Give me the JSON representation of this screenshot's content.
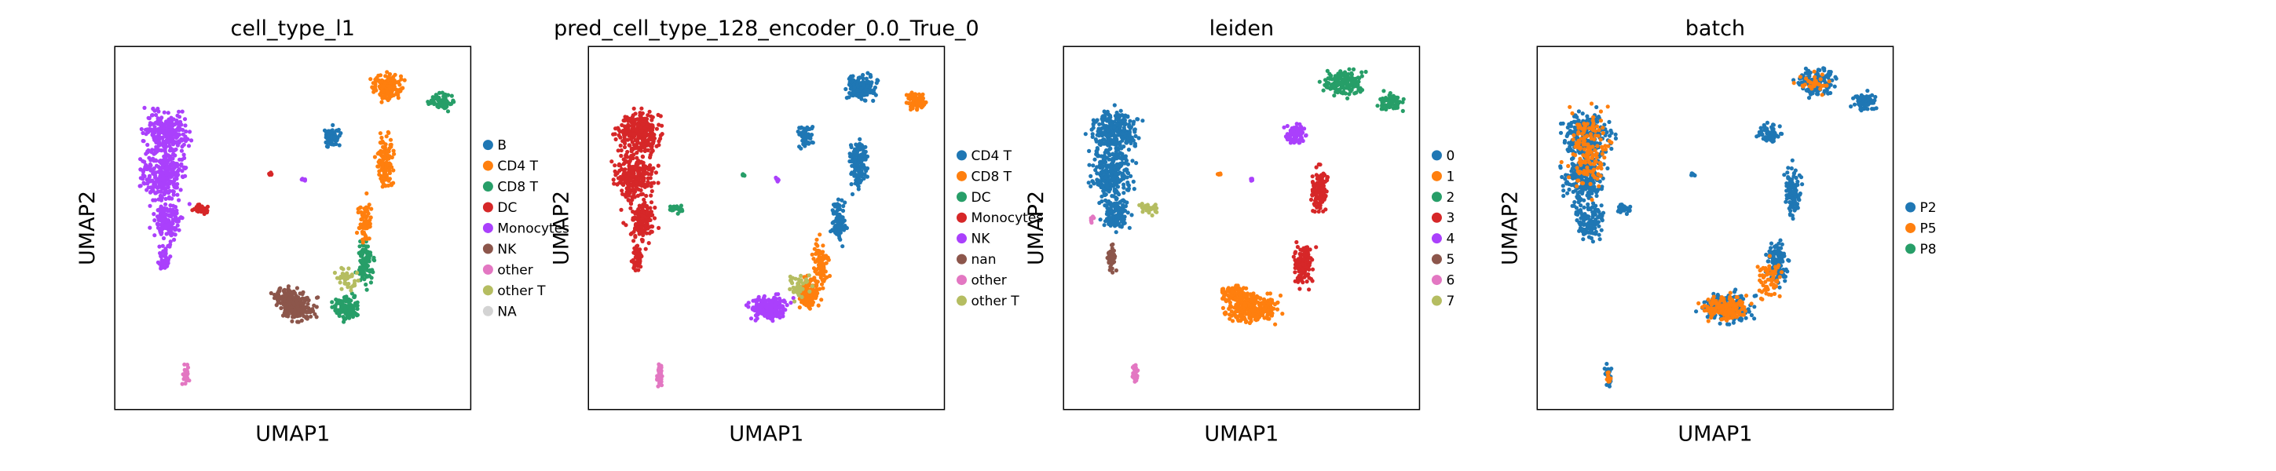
{
  "figure": {
    "background": "#ffffff"
  },
  "chart_data": [
    {
      "type": "scatter",
      "title": "cell_type_l1",
      "xlabel": "UMAP1",
      "ylabel": "UMAP2",
      "grid": false,
      "ticks": false,
      "legend_placement": "right",
      "legend": [
        {
          "label": "B",
          "color": "#1f77b4"
        },
        {
          "label": "CD4 T",
          "color": "#ff7f0e"
        },
        {
          "label": "CD8 T",
          "color": "#279e68"
        },
        {
          "label": "DC",
          "color": "#d62728"
        },
        {
          "label": "Monocytes",
          "color": "#aa40fc"
        },
        {
          "label": "NK",
          "color": "#8c564b"
        },
        {
          "label": "other",
          "color": "#e377c2"
        },
        {
          "label": "other T",
          "color": "#b5bd61"
        },
        {
          "label": "NA",
          "color": "#d3d3d3"
        }
      ]
    },
    {
      "type": "scatter",
      "title": "pred_cell_type_128_encoder_0.0_True_0",
      "xlabel": "UMAP1",
      "ylabel": "UMAP2",
      "grid": false,
      "ticks": false,
      "legend_placement": "right",
      "legend": [
        {
          "label": "CD4 T",
          "color": "#1f77b4"
        },
        {
          "label": "CD8 T",
          "color": "#ff7f0e"
        },
        {
          "label": "DC",
          "color": "#279e68"
        },
        {
          "label": "Monocytes",
          "color": "#d62728"
        },
        {
          "label": "NK",
          "color": "#aa40fc"
        },
        {
          "label": "nan",
          "color": "#8c564b"
        },
        {
          "label": "other",
          "color": "#e377c2"
        },
        {
          "label": "other T",
          "color": "#b5bd61"
        }
      ]
    },
    {
      "type": "scatter",
      "title": "leiden",
      "xlabel": "UMAP1",
      "ylabel": "UMAP2",
      "grid": false,
      "ticks": false,
      "legend_placement": "right",
      "legend": [
        {
          "label": "0",
          "color": "#1f77b4"
        },
        {
          "label": "1",
          "color": "#ff7f0e"
        },
        {
          "label": "2",
          "color": "#279e68"
        },
        {
          "label": "3",
          "color": "#d62728"
        },
        {
          "label": "4",
          "color": "#aa40fc"
        },
        {
          "label": "5",
          "color": "#8c564b"
        },
        {
          "label": "6",
          "color": "#e377c2"
        },
        {
          "label": "7",
          "color": "#b5bd61"
        }
      ]
    },
    {
      "type": "scatter",
      "title": "batch",
      "xlabel": "UMAP1",
      "ylabel": "UMAP2",
      "grid": false,
      "ticks": false,
      "legend_placement": "right",
      "legend": [
        {
          "label": "P2",
          "color": "#1f77b4"
        },
        {
          "label": "P5",
          "color": "#ff7f0e"
        },
        {
          "label": "P8",
          "color": "#279e68"
        }
      ]
    }
  ]
}
